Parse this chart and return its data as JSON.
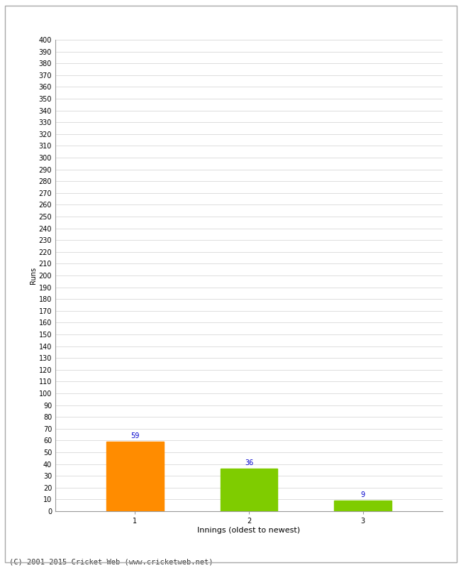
{
  "categories": [
    "1",
    "2",
    "3"
  ],
  "values": [
    59,
    36,
    9
  ],
  "bar_colors": [
    "#ff8c00",
    "#7fcc00",
    "#7fcc00"
  ],
  "xlabel": "Innings (oldest to newest)",
  "ylabel": "Runs",
  "ylim": [
    0,
    400
  ],
  "yticks": [
    0,
    10,
    20,
    30,
    40,
    50,
    60,
    70,
    80,
    90,
    100,
    110,
    120,
    130,
    140,
    150,
    160,
    170,
    180,
    190,
    200,
    210,
    220,
    230,
    240,
    250,
    260,
    270,
    280,
    290,
    300,
    310,
    320,
    330,
    340,
    350,
    360,
    370,
    380,
    390,
    400
  ],
  "label_color": "#0000cc",
  "label_fontsize": 7,
  "axis_fontsize": 7,
  "xlabel_fontsize": 8,
  "ylabel_fontsize": 7,
  "footer_text": "(C) 2001-2015 Cricket Web (www.cricketweb.net)",
  "background_color": "#ffffff",
  "grid_color": "#dddddd",
  "bar_width": 0.5,
  "border_color": "#aaaaaa"
}
